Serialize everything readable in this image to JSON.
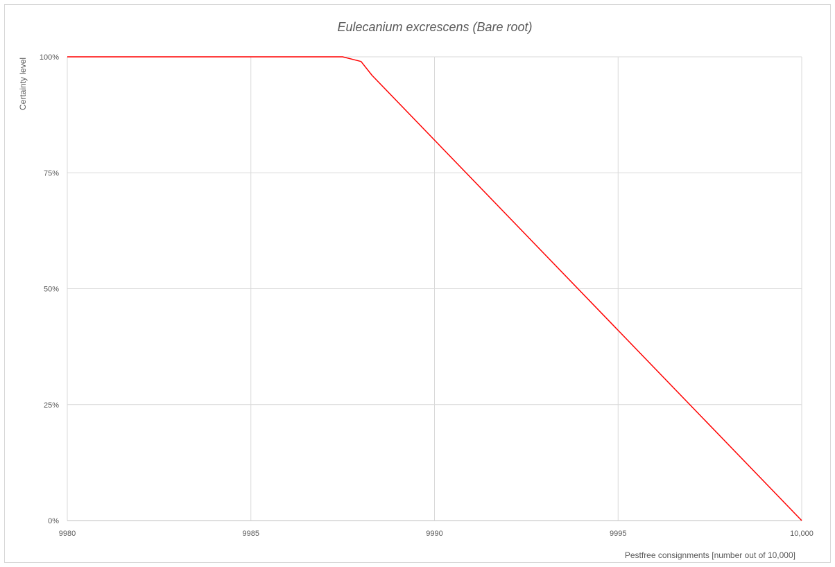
{
  "chart_data": {
    "type": "line",
    "title": "Eulecanium excrescens   (Bare root)",
    "xlabel": "Pestfree consignments [number out of 10,000]",
    "ylabel": "Certainty level",
    "xlim": [
      9980,
      10000
    ],
    "ylim": [
      0,
      1
    ],
    "x_ticks": [
      9980,
      9985,
      9990,
      9995,
      10000
    ],
    "x_tick_labels": [
      "9980",
      "9985",
      "9990",
      "9995",
      "10,000"
    ],
    "y_ticks": [
      0,
      0.25,
      0.5,
      0.75,
      1
    ],
    "y_tick_labels": [
      "0%",
      "25%",
      "50%",
      "75%",
      "100%"
    ],
    "grid": true,
    "legend": "none",
    "series": [
      {
        "color": "#ff0000",
        "x": [
          9980,
          9987.5,
          9988,
          9988.3,
          10000
        ],
        "y": [
          1,
          1,
          0.99,
          0.96,
          0
        ]
      }
    ]
  }
}
